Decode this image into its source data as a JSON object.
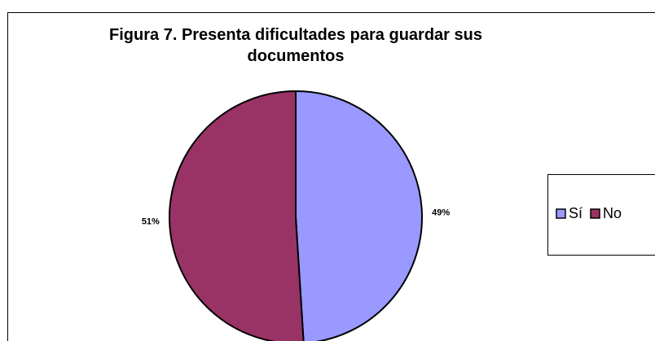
{
  "chart_data": {
    "type": "pie",
    "title": "Figura 7. Presenta dificultades para guardar sus documentos",
    "categories": [
      "Sí",
      "No"
    ],
    "values": [
      49,
      51
    ],
    "value_labels": [
      "49%",
      "51%"
    ],
    "colors": [
      "#9999ff",
      "#993366"
    ],
    "legend": "right"
  }
}
